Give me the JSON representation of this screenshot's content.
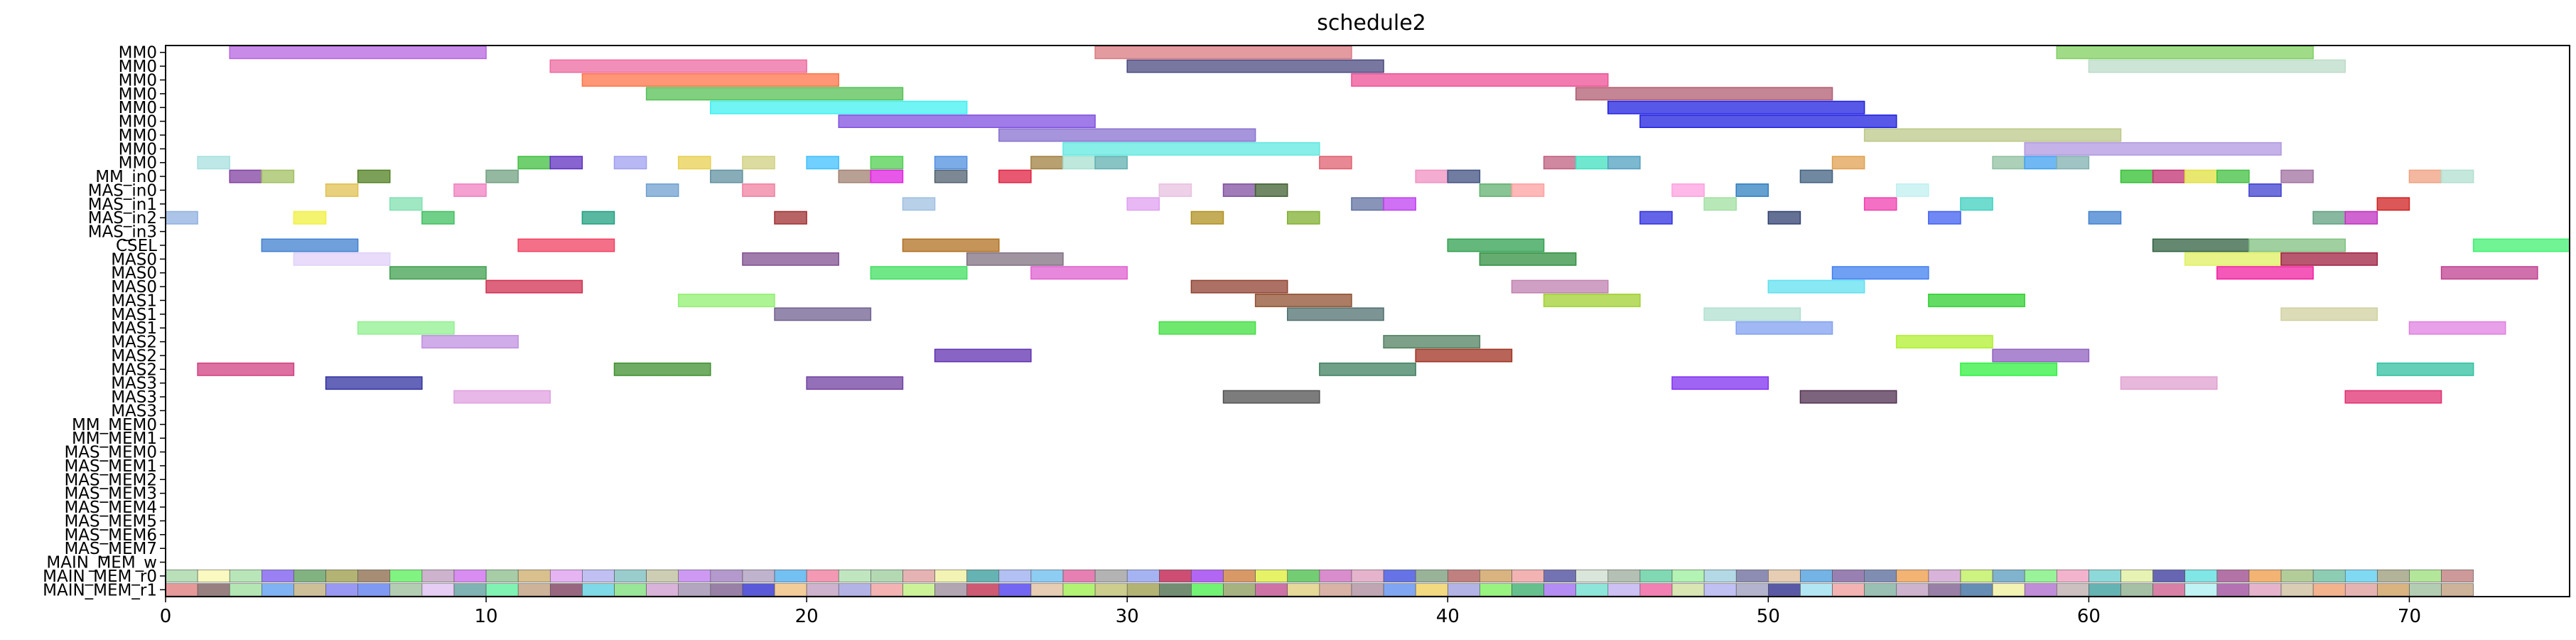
{
  "chart_data": {
    "type": "gantt",
    "title": "schedule2",
    "xlabel": "",
    "ylabel": "",
    "xlim": [
      0,
      75
    ],
    "xticks": [
      0,
      10,
      20,
      30,
      40,
      50,
      60,
      70
    ],
    "rows": [
      "MM0",
      "MM0",
      "MM0",
      "MM0",
      "MM0",
      "MM0",
      "MM0",
      "MM0",
      "MM0",
      "MM_in0",
      "MAS_in0",
      "MAS_in1",
      "MAS_in2",
      "MAS_in3",
      "CSEL",
      "MAS0",
      "MAS0",
      "MAS0",
      "MAS1",
      "MAS1",
      "MAS1",
      "MAS2",
      "MAS2",
      "MAS2",
      "MAS3",
      "MAS3",
      "MAS3",
      "MM_MEM0",
      "MM_MEM1",
      "MAS_MEM0",
      "MAS_MEM1",
      "MAS_MEM2",
      "MAS_MEM3",
      "MAS_MEM4",
      "MAS_MEM5",
      "MAS_MEM6",
      "MAS_MEM7",
      "MAIN_MEM_w",
      "MAIN_MEM_r0",
      "MAIN_MEM_r1"
    ],
    "tasks": [
      {
        "row": 0,
        "start": 2,
        "end": 10,
        "color": "#b565e0"
      },
      {
        "row": 0,
        "start": 29,
        "end": 37,
        "color": "#d97a80"
      },
      {
        "row": 0,
        "start": 59,
        "end": 67,
        "color": "#80d060"
      },
      {
        "row": 1,
        "start": 12,
        "end": 20,
        "color": "#ee6aa0"
      },
      {
        "row": 1,
        "start": 30,
        "end": 38,
        "color": "#4a4a80"
      },
      {
        "row": 1,
        "start": 60,
        "end": 68,
        "color": "#bcdcc8"
      },
      {
        "row": 2,
        "start": 13,
        "end": 21,
        "color": "#ff7448"
      },
      {
        "row": 2,
        "start": 37,
        "end": 45,
        "color": "#ee5096"
      },
      {
        "row": 3,
        "start": 15,
        "end": 23,
        "color": "#56c056"
      },
      {
        "row": 3,
        "start": 44,
        "end": 52,
        "color": "#b05c70"
      },
      {
        "row": 4,
        "start": 17,
        "end": 25,
        "color": "#40f0f0"
      },
      {
        "row": 4,
        "start": 45,
        "end": 53,
        "color": "#2020e0"
      },
      {
        "row": 5,
        "start": 21,
        "end": 29,
        "color": "#8050e0"
      },
      {
        "row": 5,
        "start": 46,
        "end": 54,
        "color": "#2020e0"
      },
      {
        "row": 6,
        "start": 26,
        "end": 34,
        "color": "#8870d0"
      },
      {
        "row": 6,
        "start": 53,
        "end": 61,
        "color": "#bcc888"
      },
      {
        "row": 7,
        "start": 28,
        "end": 36,
        "color": "#60e8e0"
      },
      {
        "row": 7,
        "start": 58,
        "end": 66,
        "color": "#b098e0"
      },
      {
        "row": 8,
        "start": 1,
        "end": 2,
        "color": "#a8e0e0"
      },
      {
        "row": 8,
        "start": 11,
        "end": 12,
        "color": "#40c040"
      },
      {
        "row": 8,
        "start": 12,
        "end": 13,
        "color": "#6030c0"
      },
      {
        "row": 8,
        "start": 14,
        "end": 15,
        "color": "#a0a0f0"
      },
      {
        "row": 8,
        "start": 16,
        "end": 17,
        "color": "#e8d050"
      },
      {
        "row": 8,
        "start": 18,
        "end": 19,
        "color": "#d0d080"
      },
      {
        "row": 8,
        "start": 20,
        "end": 21,
        "color": "#40c0ff"
      },
      {
        "row": 8,
        "start": 22,
        "end": 23,
        "color": "#50d050"
      },
      {
        "row": 8,
        "start": 24,
        "end": 25,
        "color": "#5090e0"
      },
      {
        "row": 8,
        "start": 27,
        "end": 28,
        "color": "#a08040"
      },
      {
        "row": 8,
        "start": 28,
        "end": 29,
        "color": "#a8e0d0"
      },
      {
        "row": 8,
        "start": 29,
        "end": 30,
        "color": "#60b0b0"
      },
      {
        "row": 8,
        "start": 36,
        "end": 37,
        "color": "#e06070"
      },
      {
        "row": 8,
        "start": 43,
        "end": 44,
        "color": "#c06080"
      },
      {
        "row": 8,
        "start": 44,
        "end": 45,
        "color": "#40e0c0"
      },
      {
        "row": 8,
        "start": 45,
        "end": 46,
        "color": "#50a0c0"
      },
      {
        "row": 8,
        "start": 52,
        "end": 53,
        "color": "#e0a050"
      },
      {
        "row": 8,
        "start": 57,
        "end": 58,
        "color": "#90c0a0"
      },
      {
        "row": 8,
        "start": 58,
        "end": 59,
        "color": "#40a0f0"
      },
      {
        "row": 8,
        "start": 59,
        "end": 60,
        "color": "#80b0b0"
      },
      {
        "row": 9,
        "start": 2,
        "end": 3,
        "color": "#8040a0"
      },
      {
        "row": 9,
        "start": 3,
        "end": 4,
        "color": "#a0c060"
      },
      {
        "row": 9,
        "start": 6,
        "end": 7,
        "color": "#508020"
      },
      {
        "row": 9,
        "start": 10,
        "end": 11,
        "color": "#70a080"
      },
      {
        "row": 9,
        "start": 17,
        "end": 18,
        "color": "#6090a0"
      },
      {
        "row": 9,
        "start": 21,
        "end": 22,
        "color": "#a08070"
      },
      {
        "row": 9,
        "start": 22,
        "end": 23,
        "color": "#e020e0"
      },
      {
        "row": 9,
        "start": 24,
        "end": 25,
        "color": "#506070"
      },
      {
        "row": 9,
        "start": 26,
        "end": 27,
        "color": "#e02040"
      },
      {
        "row": 9,
        "start": 39,
        "end": 40,
        "color": "#f090c0"
      },
      {
        "row": 9,
        "start": 40,
        "end": 41,
        "color": "#405080"
      },
      {
        "row": 9,
        "start": 51,
        "end": 52,
        "color": "#406080"
      },
      {
        "row": 9,
        "start": 61,
        "end": 62,
        "color": "#30c030"
      },
      {
        "row": 9,
        "start": 62,
        "end": 63,
        "color": "#c03070"
      },
      {
        "row": 9,
        "start": 63,
        "end": 64,
        "color": "#e0e040"
      },
      {
        "row": 9,
        "start": 64,
        "end": 65,
        "color": "#40c040"
      },
      {
        "row": 9,
        "start": 66,
        "end": 67,
        "color": "#a070a0"
      },
      {
        "row": 9,
        "start": 70,
        "end": 71,
        "color": "#f0a080"
      },
      {
        "row": 9,
        "start": 71,
        "end": 72,
        "color": "#b0e0d0"
      },
      {
        "row": 10,
        "start": 5,
        "end": 6,
        "color": "#e0c050"
      },
      {
        "row": 10,
        "start": 9,
        "end": 10,
        "color": "#f080c0"
      },
      {
        "row": 10,
        "start": 15,
        "end": 16,
        "color": "#70a0d0"
      },
      {
        "row": 10,
        "start": 18,
        "end": 19,
        "color": "#f080a0"
      },
      {
        "row": 10,
        "start": 31,
        "end": 32,
        "color": "#e8c0e0"
      },
      {
        "row": 10,
        "start": 33,
        "end": 34,
        "color": "#8050a0"
      },
      {
        "row": 10,
        "start": 34,
        "end": 35,
        "color": "#406030"
      },
      {
        "row": 10,
        "start": 41,
        "end": 42,
        "color": "#60b070"
      },
      {
        "row": 10,
        "start": 42,
        "end": 43,
        "color": "#ffa0a0"
      },
      {
        "row": 10,
        "start": 47,
        "end": 48,
        "color": "#ffa0e0"
      },
      {
        "row": 10,
        "start": 49,
        "end": 50,
        "color": "#3080c0"
      },
      {
        "row": 10,
        "start": 54,
        "end": 55,
        "color": "#c0f0f0"
      },
      {
        "row": 10,
        "start": 65,
        "end": 66,
        "color": "#4040d0"
      },
      {
        "row": 11,
        "start": 7,
        "end": 8,
        "color": "#80e0b0"
      },
      {
        "row": 11,
        "start": 23,
        "end": 24,
        "color": "#a0c0e0"
      },
      {
        "row": 11,
        "start": 30,
        "end": 31,
        "color": "#e0a0f0"
      },
      {
        "row": 11,
        "start": 37,
        "end": 38,
        "color": "#6070a0"
      },
      {
        "row": 11,
        "start": 38,
        "end": 39,
        "color": "#c040f0"
      },
      {
        "row": 11,
        "start": 48,
        "end": 49,
        "color": "#a0e0a0"
      },
      {
        "row": 11,
        "start": 53,
        "end": 54,
        "color": "#f040b0"
      },
      {
        "row": 11,
        "start": 56,
        "end": 57,
        "color": "#40d0c0"
      },
      {
        "row": 11,
        "start": 69,
        "end": 70,
        "color": "#d02020"
      },
      {
        "row": 12,
        "start": 0,
        "end": 1,
        "color": "#90b0e0"
      },
      {
        "row": 12,
        "start": 4,
        "end": 5,
        "color": "#f0f040"
      },
      {
        "row": 12,
        "start": 8,
        "end": 9,
        "color": "#40c060"
      },
      {
        "row": 12,
        "start": 13,
        "end": 14,
        "color": "#20a080"
      },
      {
        "row": 12,
        "start": 19,
        "end": 20,
        "color": "#a03030"
      },
      {
        "row": 12,
        "start": 32,
        "end": 33,
        "color": "#b09020"
      },
      {
        "row": 12,
        "start": 35,
        "end": 36,
        "color": "#80b030"
      },
      {
        "row": 12,
        "start": 46,
        "end": 47,
        "color": "#3030e0"
      },
      {
        "row": 12,
        "start": 50,
        "end": 51,
        "color": "#304070"
      },
      {
        "row": 12,
        "start": 55,
        "end": 56,
        "color": "#4060f0"
      },
      {
        "row": 12,
        "start": 60,
        "end": 61,
        "color": "#4080d0"
      },
      {
        "row": 12,
        "start": 67,
        "end": 68,
        "color": "#60a080"
      },
      {
        "row": 12,
        "start": 68,
        "end": 69,
        "color": "#c030c0"
      },
      {
        "row": 14,
        "start": 3,
        "end": 6,
        "color": "#4080d0"
      },
      {
        "row": 14,
        "start": 11,
        "end": 14,
        "color": "#f04060"
      },
      {
        "row": 14,
        "start": 23,
        "end": 26,
        "color": "#b07020"
      },
      {
        "row": 14,
        "start": 40,
        "end": 43,
        "color": "#30a050"
      },
      {
        "row": 14,
        "start": 62,
        "end": 65,
        "color": "#306040"
      },
      {
        "row": 14,
        "start": 65,
        "end": 68,
        "color": "#80c080"
      },
      {
        "row": 14,
        "start": 72,
        "end": 75,
        "color": "#40f070"
      },
      {
        "row": 15,
        "start": 4,
        "end": 7,
        "color": "#e0d0f8"
      },
      {
        "row": 15,
        "start": 18,
        "end": 21,
        "color": "#805090"
      },
      {
        "row": 15,
        "start": 25,
        "end": 28,
        "color": "#807080"
      },
      {
        "row": 15,
        "start": 41,
        "end": 44,
        "color": "#309040"
      },
      {
        "row": 15,
        "start": 63,
        "end": 66,
        "color": "#e0f060"
      },
      {
        "row": 15,
        "start": 66,
        "end": 69,
        "color": "#a02040"
      },
      {
        "row": 16,
        "start": 7,
        "end": 10,
        "color": "#40a050"
      },
      {
        "row": 16,
        "start": 22,
        "end": 25,
        "color": "#40e060"
      },
      {
        "row": 16,
        "start": 27,
        "end": 30,
        "color": "#e060d0"
      },
      {
        "row": 16,
        "start": 52,
        "end": 55,
        "color": "#4080f0"
      },
      {
        "row": 16,
        "start": 64,
        "end": 67,
        "color": "#f020a0"
      },
      {
        "row": 16,
        "start": 71,
        "end": 74,
        "color": "#c04090"
      },
      {
        "row": 17,
        "start": 10,
        "end": 13,
        "color": "#d03050"
      },
      {
        "row": 17,
        "start": 32,
        "end": 35,
        "color": "#904030"
      },
      {
        "row": 17,
        "start": 42,
        "end": 45,
        "color": "#c080b0"
      },
      {
        "row": 17,
        "start": 50,
        "end": 53,
        "color": "#60e0f0"
      },
      {
        "row": 18,
        "start": 16,
        "end": 19,
        "color": "#90f070"
      },
      {
        "row": 18,
        "start": 34,
        "end": 37,
        "color": "#905030"
      },
      {
        "row": 18,
        "start": 43,
        "end": 46,
        "color": "#a0d030"
      },
      {
        "row": 18,
        "start": 55,
        "end": 58,
        "color": "#30d030"
      },
      {
        "row": 19,
        "start": 19,
        "end": 22,
        "color": "#706090"
      },
      {
        "row": 19,
        "start": 35,
        "end": 38,
        "color": "#507070"
      },
      {
        "row": 19,
        "start": 48,
        "end": 51,
        "color": "#b0e0d0"
      },
      {
        "row": 19,
        "start": 66,
        "end": 69,
        "color": "#d0d0a0"
      },
      {
        "row": 20,
        "start": 6,
        "end": 9,
        "color": "#90f090"
      },
      {
        "row": 20,
        "start": 31,
        "end": 34,
        "color": "#40e040"
      },
      {
        "row": 20,
        "start": 49,
        "end": 52,
        "color": "#80a0f0"
      },
      {
        "row": 20,
        "start": 70,
        "end": 73,
        "color": "#e080e0"
      },
      {
        "row": 21,
        "start": 8,
        "end": 11,
        "color": "#c090e0"
      },
      {
        "row": 21,
        "start": 38,
        "end": 41,
        "color": "#508060"
      },
      {
        "row": 21,
        "start": 54,
        "end": 57,
        "color": "#b0f030"
      },
      {
        "row": 22,
        "start": 24,
        "end": 27,
        "color": "#6030b0"
      },
      {
        "row": 22,
        "start": 39,
        "end": 42,
        "color": "#a03020"
      },
      {
        "row": 22,
        "start": 57,
        "end": 60,
        "color": "#9060c0"
      },
      {
        "row": 23,
        "start": 1,
        "end": 4,
        "color": "#d04080"
      },
      {
        "row": 23,
        "start": 14,
        "end": 17,
        "color": "#409030"
      },
      {
        "row": 23,
        "start": 36,
        "end": 39,
        "color": "#408060"
      },
      {
        "row": 23,
        "start": 56,
        "end": 59,
        "color": "#30f040"
      },
      {
        "row": 23,
        "start": 69,
        "end": 72,
        "color": "#30c0a0"
      },
      {
        "row": 24,
        "start": 5,
        "end": 8,
        "color": "#3030a0"
      },
      {
        "row": 24,
        "start": 20,
        "end": 23,
        "color": "#7040a0"
      },
      {
        "row": 24,
        "start": 47,
        "end": 50,
        "color": "#8030f0"
      },
      {
        "row": 24,
        "start": 61,
        "end": 64,
        "color": "#e0a0d0"
      },
      {
        "row": 25,
        "start": 9,
        "end": 12,
        "color": "#e0a0e0"
      },
      {
        "row": 25,
        "start": 33,
        "end": 36,
        "color": "#505050"
      },
      {
        "row": 25,
        "start": 51,
        "end": 54,
        "color": "#503050"
      },
      {
        "row": 25,
        "start": 68,
        "end": 71,
        "color": "#e03070"
      }
    ],
    "memory_row_colors": [
      [
        "#a8d8a8",
        "#f8f8b0",
        "#a8e0a8",
        "#8060f0",
        "#60a060",
        "#a0a050",
        "#907050",
        "#60f060",
        "#c0a0c0",
        "#d070f0",
        "#90c090",
        "#d0b070",
        "#e0a0f0",
        "#b0b0f0",
        "#80c0c0",
        "#c0c0a0",
        "#c080f0",
        "#a080c0",
        "#b0a0c0",
        "#50b0f0",
        "#f080a0",
        "#b0e0b0",
        "#a0d0a0",
        "#e0a0a0",
        "#f0f0a0",
        "#40a0a0",
        "#a0b0f0",
        "#70c0f0",
        "#e060a0",
        "#a0a0a0",
        "#90a0f0",
        "#c02050",
        "#a040f0",
        "#d08040",
        "#e0f040",
        "#50c050",
        "#d070c0",
        "#e0a0c0",
        "#4050e0",
        "#80a080",
        "#b06060",
        "#d0a060",
        "#f0a0a0",
        "#5050a0",
        "#d0e0d0",
        "#a0b0a0",
        "#60d0a0",
        "#a0f0a0",
        "#a0d0e0",
        "#7070a0",
        "#e0c0a0",
        "#50a0e0",
        "#8060a0",
        "#6070a0",
        "#f0a050",
        "#d0a0d0",
        "#c0f060",
        "#60a0c0",
        "#80f080",
        "#f0a0c0",
        "#70d0d0",
        "#e0f0a0",
        "#4040a0",
        "#60e0e0",
        "#a05090",
        "#f0a050",
        "#a0c080",
        "#70c0a0",
        "#60d0f0",
        "#a0a080",
        "#a0e080",
        "#c08080"
      ],
      [
        "#e08080",
        "#806060",
        "#a0e0a0",
        "#60a0f0",
        "#c0b080",
        "#8080f0",
        "#6080f0",
        "#a0c0a0",
        "#e0c0f0",
        "#60a0a0",
        "#60f0a0",
        "#c0a080",
        "#804060",
        "#60d0e0",
        "#80e080",
        "#d0a0d0",
        "#a090b0",
        "#806090",
        "#3030d0",
        "#f0c080",
        "#c0a0c0",
        "#a0a0e0",
        "#f0a0a0",
        "#c0f080",
        "#a090a0",
        "#c03050",
        "#5040f0",
        "#e0c0a0",
        "#a0f050",
        "#c0c070",
        "#a0a050",
        "#507050",
        "#50f050",
        "#90a060",
        "#c05090",
        "#e0d080",
        "#d0a090",
        "#b090a0",
        "#6090f0",
        "#f0d060",
        "#a0a0e0",
        "#80f060",
        "#40b070",
        "#a070f0",
        "#70e0d0",
        "#c0b0f0",
        "#f060a0",
        "#d0e0a0",
        "#b0b0f0",
        "#a0a0c0",
        "#303090",
        "#a0e0f0",
        "#f0a0a0",
        "#80b0a0",
        "#c0a0c0",
        "#806090",
        "#4070a0",
        "#f0f0a0",
        "#b070d0",
        "#c0b0b0",
        "#40a0a0",
        "#90b090",
        "#d06090",
        "#b0f0f0",
        "#a050a0",
        "#e0a0c0",
        "#d0c0a0",
        "#f0a070",
        "#e0a0a0",
        "#d0a060",
        "#a0c0a0",
        "#c0a080"
      ]
    ],
    "grid": false,
    "legend": "none"
  }
}
